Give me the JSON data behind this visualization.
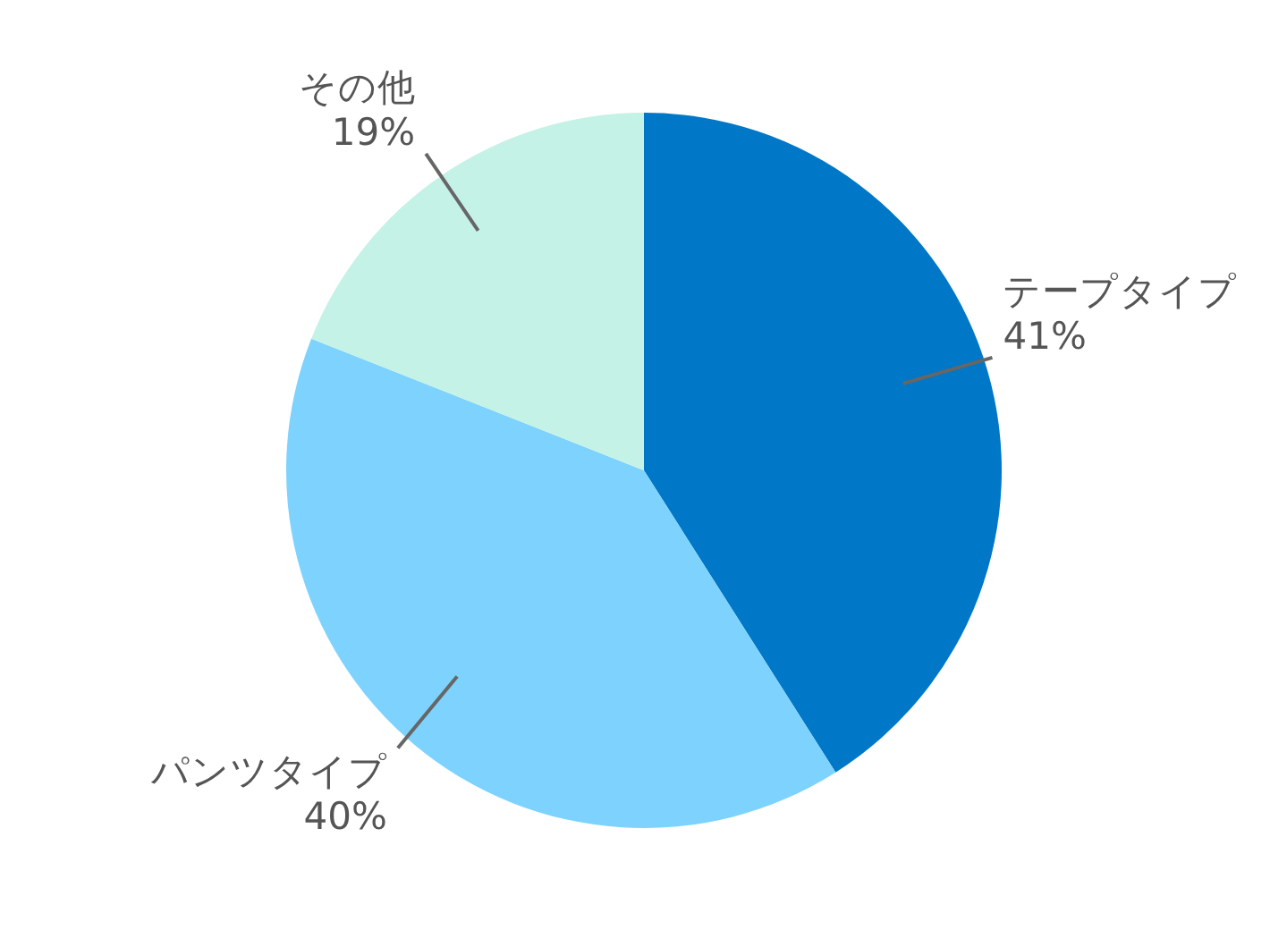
{
  "chart_data": {
    "type": "pie",
    "categories": [
      "テープタイプ",
      "パンツタイプ",
      "その他"
    ],
    "values": [
      41,
      40,
      19
    ],
    "value_labels": [
      "41%",
      "40%",
      "19%"
    ],
    "colors": [
      "#0077c7",
      "#7dd3fd",
      "#c5f2e6"
    ],
    "legend": false
  }
}
